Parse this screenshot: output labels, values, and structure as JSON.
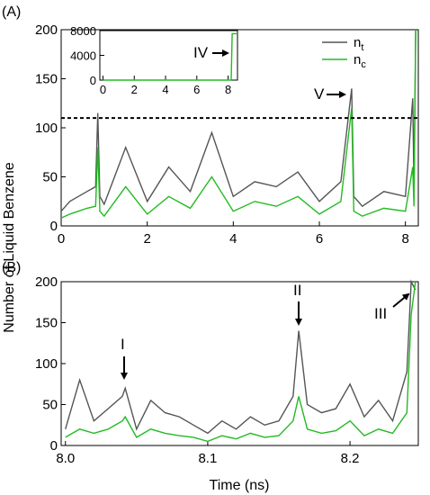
{
  "chart_data": [
    {
      "panel_label": "(A)",
      "type": "line",
      "xlim": [
        0,
        8.3
      ],
      "ylim": [
        0,
        200
      ],
      "xticks": [
        "0",
        "2",
        "4",
        "6",
        "8"
      ],
      "yticks": [
        "0",
        "50",
        "100",
        "150",
        "200"
      ],
      "threshold": 110,
      "legend_placement": "top-right",
      "series": [
        {
          "name_main": "n",
          "name_sub": "t",
          "color": "#555555",
          "x": [
            0,
            0.2,
            0.4,
            0.6,
            0.8,
            0.85,
            0.9,
            1.0,
            1.5,
            2.0,
            2.5,
            3.0,
            3.5,
            4.0,
            4.5,
            5.0,
            5.5,
            6.0,
            6.5,
            6.75,
            6.8,
            7.0,
            7.5,
            8.0,
            8.17,
            8.2,
            8.24
          ],
          "y": [
            15,
            25,
            30,
            35,
            40,
            115,
            30,
            22,
            80,
            25,
            60,
            35,
            95,
            30,
            45,
            40,
            55,
            25,
            45,
            140,
            30,
            20,
            35,
            30,
            130,
            40,
            200
          ]
        },
        {
          "name_main": "n",
          "name_sub": "c",
          "color": "#22bb22",
          "x": [
            0,
            0.2,
            0.4,
            0.6,
            0.8,
            0.85,
            0.9,
            1.0,
            1.5,
            2.0,
            2.5,
            3.0,
            3.5,
            4.0,
            4.5,
            5.0,
            5.5,
            6.0,
            6.5,
            6.75,
            6.8,
            7.0,
            7.5,
            8.0,
            8.17,
            8.2,
            8.24
          ],
          "y": [
            8,
            12,
            15,
            18,
            20,
            80,
            15,
            10,
            40,
            12,
            30,
            18,
            50,
            15,
            25,
            20,
            30,
            12,
            25,
            120,
            15,
            10,
            18,
            15,
            60,
            20,
            200
          ]
        }
      ],
      "annotations": [
        {
          "text": "V",
          "x": 6.75,
          "y": 140
        }
      ]
    },
    {
      "panel_label": "",
      "type": "line",
      "xlim": [
        -0.2,
        8.6
      ],
      "ylim": [
        0,
        8000
      ],
      "xticks": [
        "0",
        "2",
        "4",
        "6",
        "8"
      ],
      "yticks": [
        "0",
        "4000",
        "8000"
      ],
      "series": [
        {
          "name": "",
          "color": "#22bb22",
          "x": [
            0,
            8.0,
            8.2,
            8.26,
            8.3,
            8.6
          ],
          "y": [
            0,
            0,
            0,
            7500,
            7500,
            7500
          ]
        }
      ],
      "annotations": [
        {
          "text": "IV",
          "x": 8.24,
          "y": 3800
        }
      ]
    },
    {
      "panel_label": "(B)",
      "type": "line",
      "xlim": [
        7.997,
        8.248
      ],
      "ylim": [
        0,
        200
      ],
      "xticks": [
        "8.0",
        "8.1",
        "8.2"
      ],
      "yticks": [
        "0",
        "50",
        "100",
        "150",
        "200"
      ],
      "xlabel": "Time (ns)",
      "series": [
        {
          "name": "",
          "color": "#555555",
          "x": [
            8.0,
            8.01,
            8.02,
            8.03,
            8.04,
            8.042,
            8.05,
            8.06,
            8.07,
            8.08,
            8.09,
            8.1,
            8.11,
            8.12,
            8.13,
            8.14,
            8.15,
            8.16,
            8.164,
            8.17,
            8.18,
            8.19,
            8.2,
            8.21,
            8.22,
            8.23,
            8.24,
            8.243,
            8.246
          ],
          "y": [
            20,
            80,
            30,
            45,
            60,
            70,
            20,
            55,
            40,
            35,
            25,
            15,
            30,
            20,
            35,
            25,
            30,
            60,
            140,
            50,
            40,
            45,
            75,
            35,
            55,
            30,
            90,
            200,
            190
          ]
        },
        {
          "name": "",
          "color": "#22bb22",
          "x": [
            8.0,
            8.01,
            8.02,
            8.03,
            8.04,
            8.042,
            8.05,
            8.06,
            8.07,
            8.08,
            8.09,
            8.1,
            8.11,
            8.12,
            8.13,
            8.14,
            8.15,
            8.16,
            8.164,
            8.17,
            8.18,
            8.19,
            8.2,
            8.21,
            8.22,
            8.23,
            8.24,
            8.243,
            8.246
          ],
          "y": [
            10,
            20,
            15,
            20,
            30,
            35,
            10,
            20,
            15,
            12,
            10,
            5,
            12,
            8,
            15,
            10,
            12,
            30,
            60,
            20,
            15,
            18,
            30,
            12,
            20,
            15,
            40,
            160,
            200
          ]
        }
      ],
      "annotations": [
        {
          "text": "I",
          "x": 8.043,
          "y": 75
        },
        {
          "text": "II",
          "x": 8.165,
          "y": 145
        },
        {
          "text": "III",
          "x": 8.24,
          "y": 195
        }
      ]
    }
  ],
  "ylabel": "Number of Liquid Benzene"
}
